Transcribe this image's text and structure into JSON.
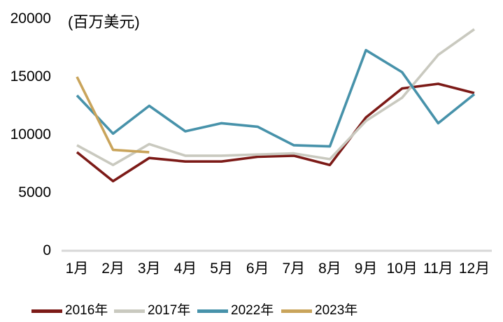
{
  "chart_data": {
    "type": "line",
    "title": "",
    "unit_label": "(百万美元)",
    "xlabel": "",
    "ylabel": "",
    "categories": [
      "1月",
      "2月",
      "3月",
      "4月",
      "5月",
      "6月",
      "7月",
      "8月",
      "9月",
      "10月",
      "11月",
      "12月"
    ],
    "yticks": [
      0,
      5000,
      10000,
      15000,
      20000
    ],
    "ylim": [
      0,
      20000
    ],
    "grid": false,
    "legend_position": "bottom",
    "axis_color": "#d7d7d7",
    "series": [
      {
        "name": "2016年",
        "color": "#7c1a17",
        "values": [
          8500,
          6000,
          8000,
          7700,
          7700,
          8100,
          8200,
          7400,
          11500,
          14000,
          14400,
          13600
        ]
      },
      {
        "name": "2017年",
        "color": "#c9c9bf",
        "values": [
          9100,
          7400,
          9200,
          8200,
          8200,
          8300,
          8400,
          7900,
          11200,
          13200,
          16900,
          19100
        ]
      },
      {
        "name": "2022年",
        "color": "#4792aa",
        "values": [
          13400,
          10100,
          12500,
          10300,
          11000,
          10700,
          9100,
          9000,
          17300,
          15400,
          11000,
          13500
        ]
      },
      {
        "name": "2023年",
        "color": "#c9a45b",
        "values": [
          15000,
          8700,
          8500,
          null,
          null,
          null,
          null,
          null,
          null,
          null,
          null,
          null
        ]
      }
    ]
  }
}
